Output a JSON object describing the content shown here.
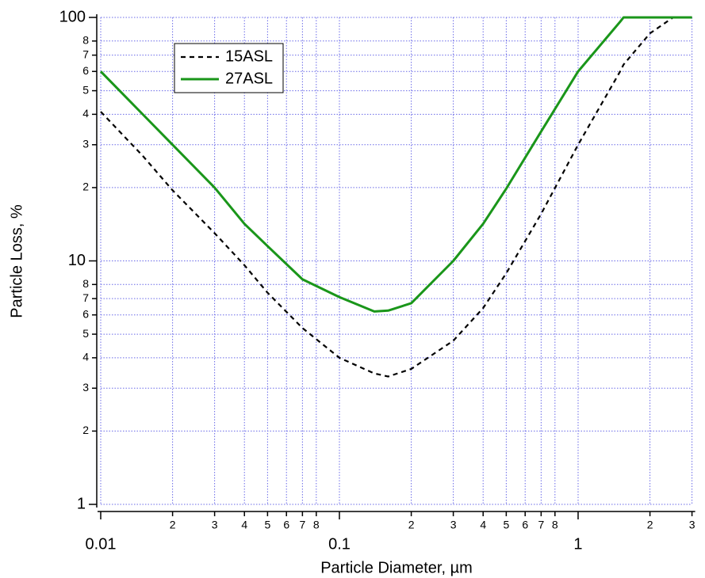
{
  "chart_data": {
    "type": "line",
    "x_label": "Particle Diameter, µm",
    "y_label": "Particle Loss, %",
    "x": [
      0.01,
      0.015,
      0.02,
      0.03,
      0.04,
      0.05,
      0.07,
      0.1,
      0.14,
      0.16,
      0.2,
      0.3,
      0.4,
      0.5,
      0.7,
      1,
      1.5,
      1.55,
      2,
      2.5,
      3
    ],
    "series": [
      {
        "name": "15ASL",
        "color": "#000000",
        "dash": true,
        "values": [
          41,
          27,
          19.5,
          13,
          9.6,
          7.4,
          5.3,
          4.0,
          3.45,
          3.35,
          3.6,
          4.7,
          6.4,
          8.9,
          15.6,
          30,
          60,
          64,
          86,
          100,
          100
        ]
      },
      {
        "name": "27ASL",
        "color": "#1a961a",
        "dash": false,
        "values": [
          60,
          40,
          30,
          20,
          14.2,
          11.5,
          8.4,
          7.1,
          6.2,
          6.25,
          6.7,
          10,
          14.2,
          19.8,
          34,
          60,
          96,
          100,
          100,
          100,
          100
        ]
      }
    ],
    "xlim": [
      0.01,
      3
    ],
    "ylim": [
      1,
      100
    ],
    "log_x": true,
    "log_y": true,
    "grid": true,
    "xticks": [
      0.01,
      {
        "value": 0.02,
        "label": "2"
      },
      {
        "value": 0.03,
        "label": "3"
      },
      {
        "value": 0.04,
        "label": "4"
      },
      {
        "value": 0.05,
        "label": "5"
      },
      {
        "value": 0.06,
        "label": "6"
      },
      {
        "value": 0.07,
        "label": "7"
      },
      {
        "value": 0.08,
        "label": "8"
      },
      0.1,
      {
        "value": 0.2,
        "label": "2"
      },
      {
        "value": 0.3,
        "label": "3"
      },
      {
        "value": 0.4,
        "label": "4"
      },
      {
        "value": 0.5,
        "label": "5"
      },
      {
        "value": 0.6,
        "label": "6"
      },
      {
        "value": 0.7,
        "label": "7"
      },
      {
        "value": 0.8,
        "label": "8"
      },
      1,
      {
        "value": 2,
        "label": "2"
      },
      {
        "value": 3,
        "label": "3"
      }
    ],
    "yticks": [
      1,
      {
        "value": 2,
        "label": "2"
      },
      {
        "value": 3,
        "label": "3"
      },
      {
        "value": 4,
        "label": "4"
      },
      {
        "value": 5,
        "label": "5"
      },
      {
        "value": 6,
        "label": "6"
      },
      {
        "value": 7,
        "label": "7"
      },
      {
        "value": 8,
        "label": "8"
      },
      10,
      {
        "value": 20,
        "label": "2"
      },
      {
        "value": 30,
        "label": "3"
      },
      {
        "value": 40,
        "label": "4"
      },
      {
        "value": 50,
        "label": "5"
      },
      {
        "value": 60,
        "label": "6"
      },
      {
        "value": 70,
        "label": "7"
      },
      {
        "value": 80,
        "label": "8"
      },
      100
    ]
  }
}
